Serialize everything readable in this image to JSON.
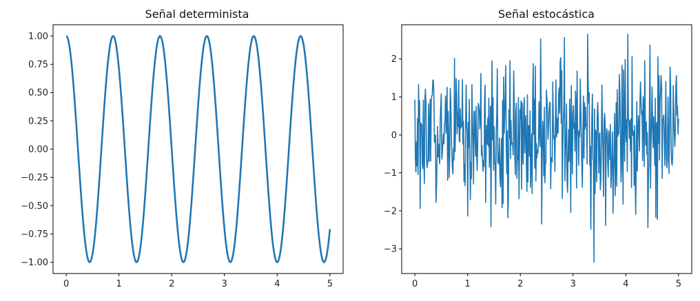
{
  "chart_data": [
    {
      "type": "line",
      "title": "Señal determinista",
      "xlabel": "",
      "ylabel": "",
      "xlim": [
        -0.25,
        5.25
      ],
      "ylim": [
        -1.1,
        1.1
      ],
      "xticks": [
        0,
        1,
        2,
        3,
        4,
        5
      ],
      "xtick_labels": [
        "0",
        "1",
        "2",
        "3",
        "4",
        "5"
      ],
      "yticks": [
        1.0,
        0.75,
        0.5,
        0.25,
        0.0,
        -0.25,
        -0.5,
        -0.75,
        -1.0
      ],
      "ytick_labels": [
        "1.00",
        "0.75",
        "0.50",
        "0.25",
        "0.00",
        "−0.25",
        "−0.50",
        "−0.75",
        "−1.00"
      ],
      "grid": false,
      "series": [
        {
          "color": "#1f77b4",
          "function": "cos(2*pi*f*t)",
          "frequency_hz": 1.125,
          "x_range": [
            0,
            5
          ],
          "sample_count": 500
        }
      ]
    },
    {
      "type": "line",
      "title": "Señal estocástica",
      "xlabel": "",
      "ylabel": "",
      "xlim": [
        -0.25,
        5.25
      ],
      "ylim": [
        -3.65,
        2.9
      ],
      "xticks": [
        0,
        1,
        2,
        3,
        4,
        5
      ],
      "xtick_labels": [
        "0",
        "1",
        "2",
        "3",
        "4",
        "5"
      ],
      "yticks": [
        2,
        1,
        0,
        -1,
        -2,
        -3
      ],
      "ytick_labels": [
        "2",
        "1",
        "0",
        "−1",
        "−2",
        "−3"
      ],
      "grid": false,
      "series": [
        {
          "color": "#1f77b4",
          "distribution": "normal",
          "mean": 0,
          "std": 1,
          "x_range": [
            0,
            5
          ],
          "sample_count": 500,
          "min": -3.35,
          "max": 2.65
        }
      ]
    }
  ]
}
